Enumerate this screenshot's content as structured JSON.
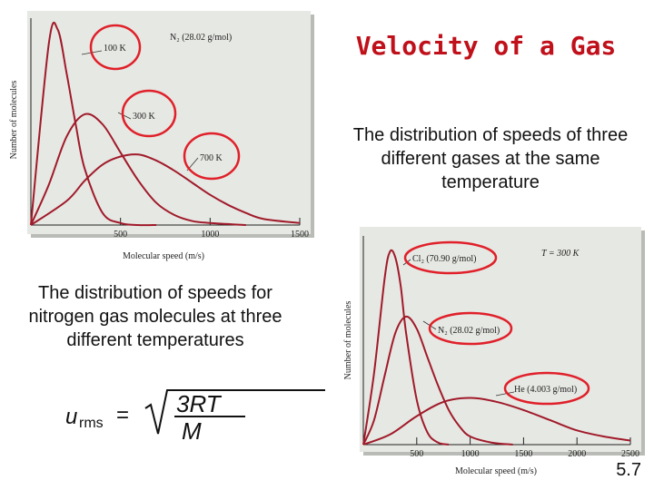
{
  "slide": {
    "title": "Velocity of a Gas",
    "caption_top": "The distribution of speeds of three different gases at the same temperature",
    "caption_left": "The distribution of speeds for nitrogen gas molecules at three different temperatures",
    "formula": {
      "lhs_var": "u",
      "lhs_sub": "rms",
      "equals": "=",
      "numerator": "3RT",
      "denominator": "M"
    },
    "slide_number": "5.7",
    "highlight_color": "#e0202a",
    "curve_color": "#a01a2a"
  },
  "chart_data": [
    {
      "type": "line",
      "title": "",
      "header_label": "N₂ (28.02 g/mol)",
      "xlabel": "Molecular speed (m/s)",
      "ylabel": "Number of molecules",
      "xlim": [
        0,
        1500
      ],
      "x_ticks": [
        "500",
        "1000",
        "1500"
      ],
      "series": [
        {
          "name": "100 K",
          "x": [
            0,
            100,
            150,
            200,
            250,
            300,
            400,
            500,
            600,
            700
          ],
          "y": [
            0,
            0.9,
            0.97,
            0.75,
            0.5,
            0.28,
            0.06,
            0.01,
            0,
            0
          ]
        },
        {
          "name": "300 K",
          "x": [
            0,
            100,
            200,
            300,
            400,
            500,
            600,
            700,
            800,
            900,
            1000,
            1200
          ],
          "y": [
            0,
            0.2,
            0.44,
            0.55,
            0.5,
            0.36,
            0.22,
            0.11,
            0.05,
            0.02,
            0.01,
            0
          ]
        },
        {
          "name": "700 K",
          "x": [
            0,
            200,
            300,
            400,
            500,
            600,
            700,
            800,
            900,
            1000,
            1100,
            1200,
            1300,
            1500
          ],
          "y": [
            0,
            0.12,
            0.22,
            0.3,
            0.34,
            0.35,
            0.32,
            0.27,
            0.21,
            0.15,
            0.1,
            0.06,
            0.03,
            0.01
          ]
        }
      ],
      "highlighted": [
        "100 K",
        "300 K",
        "700 K"
      ]
    },
    {
      "type": "line",
      "title": "",
      "header_label": "T = 300 K",
      "xlabel": "Molecular speed (m/s)",
      "ylabel": "Number of molecules",
      "xlim": [
        0,
        2500
      ],
      "x_ticks": [
        "500",
        "1000",
        "1500",
        "2000",
        "2500"
      ],
      "series": [
        {
          "name": "Cl₂ (70.90 g/mol)",
          "x": [
            0,
            100,
            200,
            250,
            300,
            350,
            400,
            500,
            600,
            700,
            800
          ],
          "y": [
            0,
            0.35,
            0.82,
            0.95,
            0.92,
            0.78,
            0.55,
            0.22,
            0.06,
            0.01,
            0
          ]
        },
        {
          "name": "N₂ (28.02 g/mol)",
          "x": [
            0,
            100,
            200,
            300,
            400,
            500,
            600,
            700,
            800,
            900,
            1000,
            1200,
            1400
          ],
          "y": [
            0,
            0.12,
            0.34,
            0.55,
            0.63,
            0.57,
            0.43,
            0.29,
            0.17,
            0.09,
            0.04,
            0.01,
            0
          ]
        },
        {
          "name": "He (4.003 g/mol)",
          "x": [
            0,
            250,
            500,
            750,
            1000,
            1250,
            1500,
            1750,
            2000,
            2250,
            2500
          ],
          "y": [
            0,
            0.05,
            0.14,
            0.21,
            0.23,
            0.21,
            0.17,
            0.12,
            0.07,
            0.04,
            0.02
          ]
        }
      ],
      "highlighted": [
        "Cl₂ (70.90 g/mol)",
        "N₂ (28.02 g/mol)",
        "He (4.003 g/mol)"
      ]
    }
  ]
}
